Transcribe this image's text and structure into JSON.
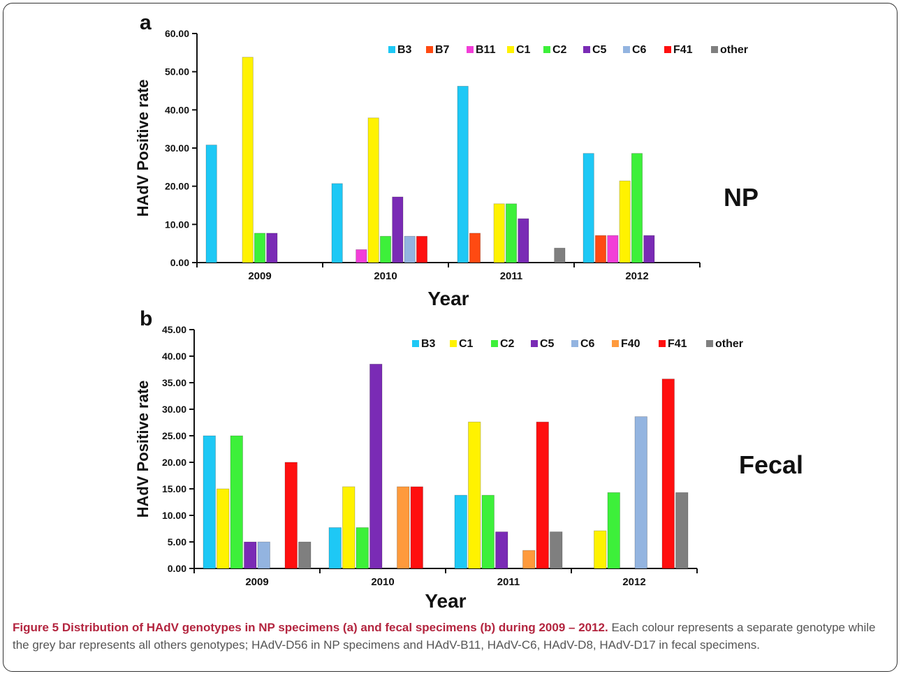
{
  "figure": {
    "caption_title": "Figure 5 Distribution of HAdV genotypes in NP specimens (a) and fecal specimens (b) during 2009 – 2012.",
    "caption_text": "Each colour represents a separate genotype while the grey bar represents all others genotypes; HAdV-D56 in NP specimens and HAdV-B11, HAdV-C6, HAdV-D8, HAdV-D17 in fecal specimens."
  },
  "colors": {
    "B3": "#1ec8f5",
    "B7": "#ff4a12",
    "B11": "#f23ed8",
    "C1": "#fff200",
    "C2": "#3df03a",
    "C5": "#7a2bb5",
    "C6": "#93b4e0",
    "F40": "#ff9a3c",
    "F41": "#ff0f0f",
    "other": "#7f7f7f"
  },
  "chart_data": [
    {
      "type": "bar",
      "panel_label": "a",
      "side_label": "NP",
      "xlabel": "Year",
      "ylabel": "HAdV Positive rate",
      "ylim": [
        0,
        60
      ],
      "yticks": [
        "0.00",
        "10.00",
        "20.00",
        "30.00",
        "40.00",
        "50.00",
        "60.00"
      ],
      "categories": [
        "2009",
        "2010",
        "2011",
        "2012"
      ],
      "legend_placement": "top-right",
      "series": [
        {
          "name": "B3",
          "values": [
            30.8,
            20.7,
            46.2,
            28.6
          ]
        },
        {
          "name": "B7",
          "values": [
            0,
            0,
            7.7,
            7.1
          ]
        },
        {
          "name": "B11",
          "values": [
            0,
            3.4,
            0,
            7.1
          ]
        },
        {
          "name": "C1",
          "values": [
            53.8,
            37.9,
            15.4,
            21.4
          ]
        },
        {
          "name": "C2",
          "values": [
            7.7,
            6.9,
            15.4,
            28.6
          ]
        },
        {
          "name": "C5",
          "values": [
            7.7,
            17.2,
            11.5,
            7.1
          ]
        },
        {
          "name": "C6",
          "values": [
            0,
            6.9,
            0,
            0
          ]
        },
        {
          "name": "F41",
          "values": [
            0,
            6.9,
            0,
            0
          ]
        },
        {
          "name": "other",
          "values": [
            0,
            0,
            3.8,
            0
          ]
        }
      ]
    },
    {
      "type": "bar",
      "panel_label": "b",
      "side_label": "Fecal",
      "xlabel": "Year",
      "ylabel": "HAdV Positive rate",
      "ylim": [
        0,
        45
      ],
      "yticks": [
        "0.00",
        "5.00",
        "10.00",
        "15.00",
        "20.00",
        "25.00",
        "30.00",
        "35.00",
        "40.00",
        "45.00"
      ],
      "categories": [
        "2009",
        "2010",
        "2011",
        "2012"
      ],
      "legend_placement": "top-right",
      "series": [
        {
          "name": "B3",
          "values": [
            25.0,
            7.7,
            13.8,
            0
          ]
        },
        {
          "name": "C1",
          "values": [
            15.0,
            15.4,
            27.6,
            7.1
          ]
        },
        {
          "name": "C2",
          "values": [
            25.0,
            7.7,
            13.8,
            14.3
          ]
        },
        {
          "name": "C5",
          "values": [
            5.0,
            38.5,
            6.9,
            0
          ]
        },
        {
          "name": "C6",
          "values": [
            5.0,
            0,
            0,
            28.6
          ]
        },
        {
          "name": "F40",
          "values": [
            0,
            15.4,
            3.4,
            0
          ]
        },
        {
          "name": "F41",
          "values": [
            20.0,
            15.4,
            27.6,
            35.7
          ]
        },
        {
          "name": "other",
          "values": [
            5.0,
            0,
            6.9,
            14.3
          ]
        }
      ]
    }
  ]
}
